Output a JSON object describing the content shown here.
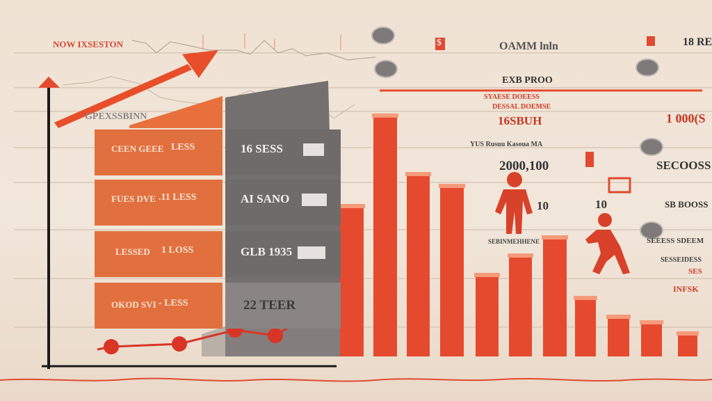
{
  "colors": {
    "accent": "#e64a2e",
    "orange": "#e2703f",
    "grey": "#6f6b6a",
    "background": "#efe3d6"
  },
  "icons": [
    "trend-up-arrow-icon",
    "person-standing-icon",
    "person-running-icon",
    "toggle-pill-icon"
  ],
  "header": {
    "left_title": "NOW IXSESTON",
    "mid_title": "OAMM lnln",
    "right_title": "18 RE",
    "dollar": "$"
  },
  "table": {
    "rows": [
      {
        "label": "CEEN GEEE",
        "value": "LESS",
        "grey_label": "16 SESS"
      },
      {
        "label": "FUES DVE",
        "value": ".11 LESS",
        "grey_label": "AI SANO"
      },
      {
        "label": "LESSED",
        "value": "1 LOSS",
        "grey_label": "GLB 1935"
      },
      {
        "label": "OKOD SVI",
        "value": "- LESS",
        "grey_label": "22 TEER"
      }
    ]
  },
  "annotations": {
    "chart_label": "GPEXSSBINN",
    "ex_label": "EXB PROO",
    "sub1": "SYAESE DOEESS",
    "sub2": "DESSAL DOEMSE",
    "big1": "16SBUH",
    "big_right": "1 000(S",
    "mid_row": "YUS Rusuu Kasoua MA",
    "big2": "2000,100",
    "big_right2": "SECOOSS",
    "ten1": "10",
    "ten2": "10",
    "right_small1": "SB BOOSS",
    "right_small2": "SEEESS SDEEM",
    "right_small3": "SESSEIDESS",
    "right_small4": "SES",
    "right_last": "INFSK",
    "mid_small": "SEBINMEHHENE"
  },
  "chart_data": [
    {
      "type": "bar",
      "values": [
        219,
        349,
        265,
        248,
        120,
        148,
        174,
        87,
        60,
        52,
        36
      ],
      "color": "#e64a2e"
    },
    {
      "type": "line",
      "values": [
        14,
        18,
        38,
        30,
        76
      ],
      "color": "#d93527"
    }
  ]
}
